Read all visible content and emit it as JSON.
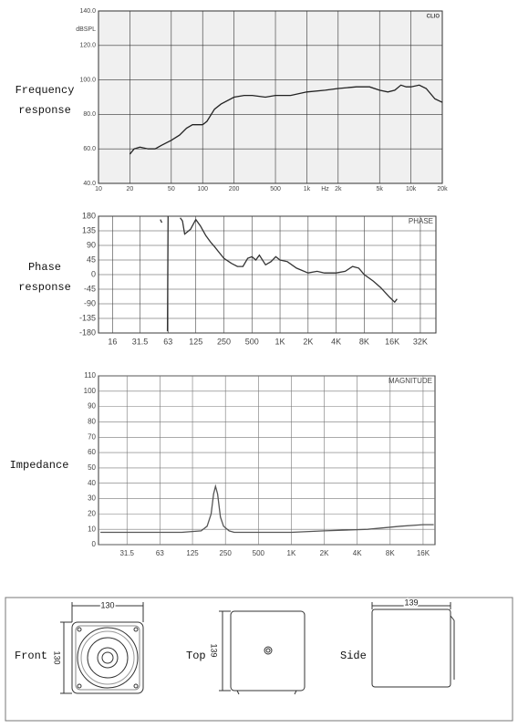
{
  "chart_data": [
    {
      "type": "line",
      "title": "Frequency response",
      "y_label": "dBSPL",
      "x_unit": "Hz",
      "corner_label": "CLIO",
      "color": "#222222",
      "log_x": true,
      "grid": true,
      "xlim": [
        10,
        20000
      ],
      "ylim": [
        40,
        140
      ],
      "xticks": [
        10,
        20,
        50,
        100,
        200,
        500,
        {
          "value": 1000,
          "label": "1k"
        },
        {
          "value": 2000,
          "label": "2k"
        },
        {
          "value": 5000,
          "label": "5k"
        },
        {
          "value": 10000,
          "label": "10k"
        },
        {
          "value": 20000,
          "label": "20k"
        }
      ],
      "yticks": [
        {
          "value": 40,
          "label": "40.0"
        },
        {
          "value": 60,
          "label": "60.0"
        },
        {
          "value": 80,
          "label": "80.0"
        },
        {
          "value": 100,
          "label": "100.0"
        },
        {
          "value": 120,
          "label": "120.0"
        },
        {
          "value": 140,
          "label": "140.0"
        }
      ],
      "x": [
        20,
        22,
        25,
        30,
        35,
        40,
        50,
        60,
        70,
        80,
        100,
        110,
        130,
        150,
        200,
        250,
        300,
        400,
        500,
        700,
        1000,
        1500,
        2000,
        3000,
        4000,
        5000,
        6000,
        7000,
        8000,
        9000,
        10000,
        12000,
        14000,
        17000,
        20000
      ],
      "values": [
        57,
        60,
        61,
        60,
        60,
        62,
        65,
        68,
        72,
        74,
        74,
        76,
        83,
        86,
        90,
        91,
        91,
        90,
        91,
        91,
        93,
        94,
        95,
        96,
        96,
        94,
        93,
        94,
        97,
        96,
        96,
        97,
        95,
        89,
        87
      ]
    },
    {
      "type": "line",
      "title": "Phase response",
      "corner_label": "PHASE",
      "color": "#333333",
      "log_x": true,
      "grid": true,
      "xlim": [
        11.3,
        47000
      ],
      "ylim": [
        -180,
        180
      ],
      "xticks": [
        16,
        31.5,
        63,
        125,
        250,
        500,
        {
          "value": 1000,
          "label": "1K"
        },
        {
          "value": 2000,
          "label": "2K"
        },
        {
          "value": 4000,
          "label": "4K"
        },
        {
          "value": 8000,
          "label": "8K"
        },
        {
          "value": 16000,
          "label": "16K"
        },
        {
          "value": 32000,
          "label": "32K"
        }
      ],
      "yticks": [
        180,
        135,
        90,
        45,
        0,
        -45,
        -90,
        -135,
        -180
      ],
      "x": [
        52,
        54,
        58,
        62,
        63,
        80,
        85,
        90,
        95,
        100,
        110,
        125,
        140,
        160,
        180,
        200,
        220,
        250,
        300,
        350,
        400,
        450,
        500,
        550,
        600,
        700,
        800,
        900,
        1000,
        1200,
        1500,
        2000,
        2500,
        3000,
        4000,
        5000,
        6000,
        7000,
        8000,
        10000,
        12000,
        15000,
        17000,
        18000
      ],
      "values": [
        170,
        160,
        null,
        -175,
        180,
        null,
        175,
        165,
        125,
        130,
        140,
        170,
        150,
        120,
        100,
        85,
        70,
        50,
        35,
        25,
        25,
        50,
        55,
        45,
        60,
        30,
        40,
        55,
        45,
        40,
        20,
        5,
        10,
        5,
        5,
        10,
        25,
        20,
        0,
        -20,
        -40,
        -70,
        -85,
        -75
      ]
    },
    {
      "type": "line",
      "title": "Impedance",
      "corner_label": "MAGNITUDE",
      "color": "#555555",
      "log_x": true,
      "grid": true,
      "xlim": [
        17.3,
        20560
      ],
      "ylim": [
        0,
        110
      ],
      "xticks": [
        31.5,
        63,
        125,
        250,
        500,
        {
          "value": 1000,
          "label": "1K"
        },
        {
          "value": 2000,
          "label": "2K"
        },
        {
          "value": 4000,
          "label": "4K"
        },
        {
          "value": 8000,
          "label": "8K"
        },
        {
          "value": 16000,
          "label": "16K"
        }
      ],
      "yticks": [
        0,
        10,
        20,
        30,
        40,
        50,
        60,
        70,
        80,
        90,
        100,
        110
      ],
      "x": [
        18,
        30,
        60,
        100,
        150,
        170,
        185,
        195,
        203,
        212,
        225,
        240,
        270,
        300,
        400,
        1000,
        2000,
        5000,
        10000,
        16000,
        20000
      ],
      "values": [
        8,
        8,
        8,
        8,
        9,
        12,
        20,
        33,
        38,
        33,
        18,
        12,
        9,
        8,
        8,
        8,
        9,
        10,
        12,
        13,
        13
      ]
    }
  ],
  "drawings": {
    "front": {
      "label": "Front",
      "width": 130,
      "height": 130
    },
    "top": {
      "label": "Top",
      "height": 139
    },
    "side": {
      "label": "Side",
      "width": 139
    }
  }
}
